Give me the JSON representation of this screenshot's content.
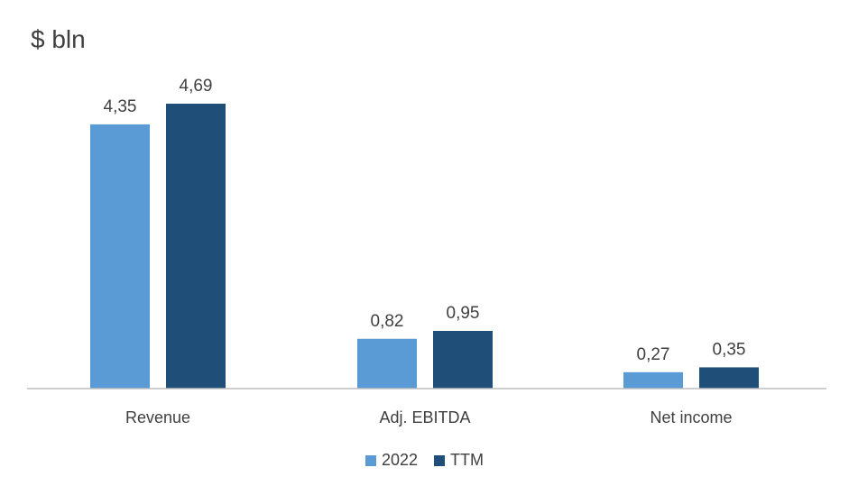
{
  "unit_label": "$ bln",
  "colors": {
    "series_2022": "#5b9bd5",
    "series_ttm": "#1f4e79",
    "axis": "#bfbfbf",
    "text": "#404040"
  },
  "legend": {
    "items": [
      {
        "label": "2022",
        "color": "#5b9bd5"
      },
      {
        "label": "TTM",
        "color": "#1f4e79"
      }
    ],
    "position": "bottom"
  },
  "chart_data": {
    "type": "bar",
    "title": "$ bln",
    "categories": [
      "Revenue",
      "Adj. EBITDA",
      "Net income"
    ],
    "series": [
      {
        "name": "2022",
        "values": [
          4.35,
          0.82,
          0.27
        ],
        "labels": [
          "4,35",
          "0,82",
          "0,27"
        ],
        "color": "#5b9bd5"
      },
      {
        "name": "TTM",
        "values": [
          4.69,
          0.95,
          0.35
        ],
        "labels": [
          "4,69",
          "0,95",
          "0,35"
        ],
        "color": "#1f4e79"
      }
    ],
    "xlabel": "",
    "ylabel": "",
    "ylim": [
      0,
      4.69
    ],
    "grid": false,
    "legend_position": "bottom"
  }
}
